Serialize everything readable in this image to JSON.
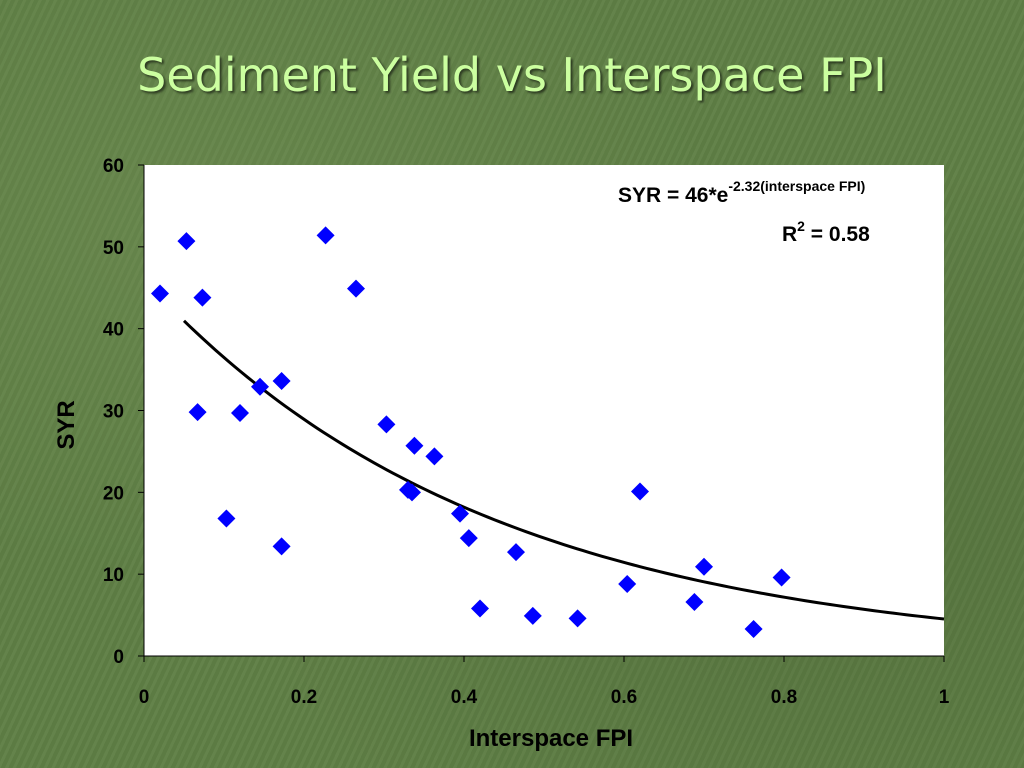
{
  "slide": {
    "title": "Sediment Yield vs Interspace FPI"
  },
  "chart_data": {
    "type": "scatter",
    "title": "Sediment Yield vs Interspace FPI",
    "xlabel": "Interspace FPI",
    "ylabel": "SYR",
    "xlim": [
      0,
      1
    ],
    "ylim": [
      0,
      60
    ],
    "x_ticks": [
      "0",
      "0.2",
      "0.4",
      "0.6",
      "0.8",
      "1"
    ],
    "y_ticks": [
      "0",
      "10",
      "20",
      "30",
      "40",
      "50",
      "60"
    ],
    "grid": false,
    "marker_color": "#0000ff",
    "curve_color": "#000000",
    "plot_background": "#ffffff",
    "points": [
      {
        "x": 0.02,
        "y": 44.3
      },
      {
        "x": 0.053,
        "y": 50.7
      },
      {
        "x": 0.067,
        "y": 29.8
      },
      {
        "x": 0.073,
        "y": 43.8
      },
      {
        "x": 0.103,
        "y": 16.8
      },
      {
        "x": 0.12,
        "y": 29.7
      },
      {
        "x": 0.145,
        "y": 32.9
      },
      {
        "x": 0.172,
        "y": 33.6
      },
      {
        "x": 0.172,
        "y": 13.4
      },
      {
        "x": 0.227,
        "y": 51.4
      },
      {
        "x": 0.265,
        "y": 44.9
      },
      {
        "x": 0.303,
        "y": 28.3
      },
      {
        "x": 0.33,
        "y": 20.3
      },
      {
        "x": 0.335,
        "y": 20.0
      },
      {
        "x": 0.338,
        "y": 25.7
      },
      {
        "x": 0.363,
        "y": 24.4
      },
      {
        "x": 0.395,
        "y": 17.4
      },
      {
        "x": 0.406,
        "y": 14.4
      },
      {
        "x": 0.42,
        "y": 5.8
      },
      {
        "x": 0.465,
        "y": 12.7
      },
      {
        "x": 0.486,
        "y": 4.9
      },
      {
        "x": 0.542,
        "y": 4.6
      },
      {
        "x": 0.604,
        "y": 8.8
      },
      {
        "x": 0.62,
        "y": 20.1
      },
      {
        "x": 0.688,
        "y": 6.6
      },
      {
        "x": 0.7,
        "y": 10.9
      },
      {
        "x": 0.762,
        "y": 3.3
      },
      {
        "x": 0.797,
        "y": 9.6
      }
    ],
    "trendline": {
      "type": "exponential",
      "coefficient": 46,
      "exponent": -2.32,
      "x_start": 0.05,
      "x_end": 1.0
    },
    "annotations": {
      "equation_main": "SYR = 46*e",
      "equation_exponent": "-2.32(interspace FPI)",
      "r2_prefix": "R",
      "r2_sup": "2",
      "r2_value": " = 0.58"
    }
  }
}
